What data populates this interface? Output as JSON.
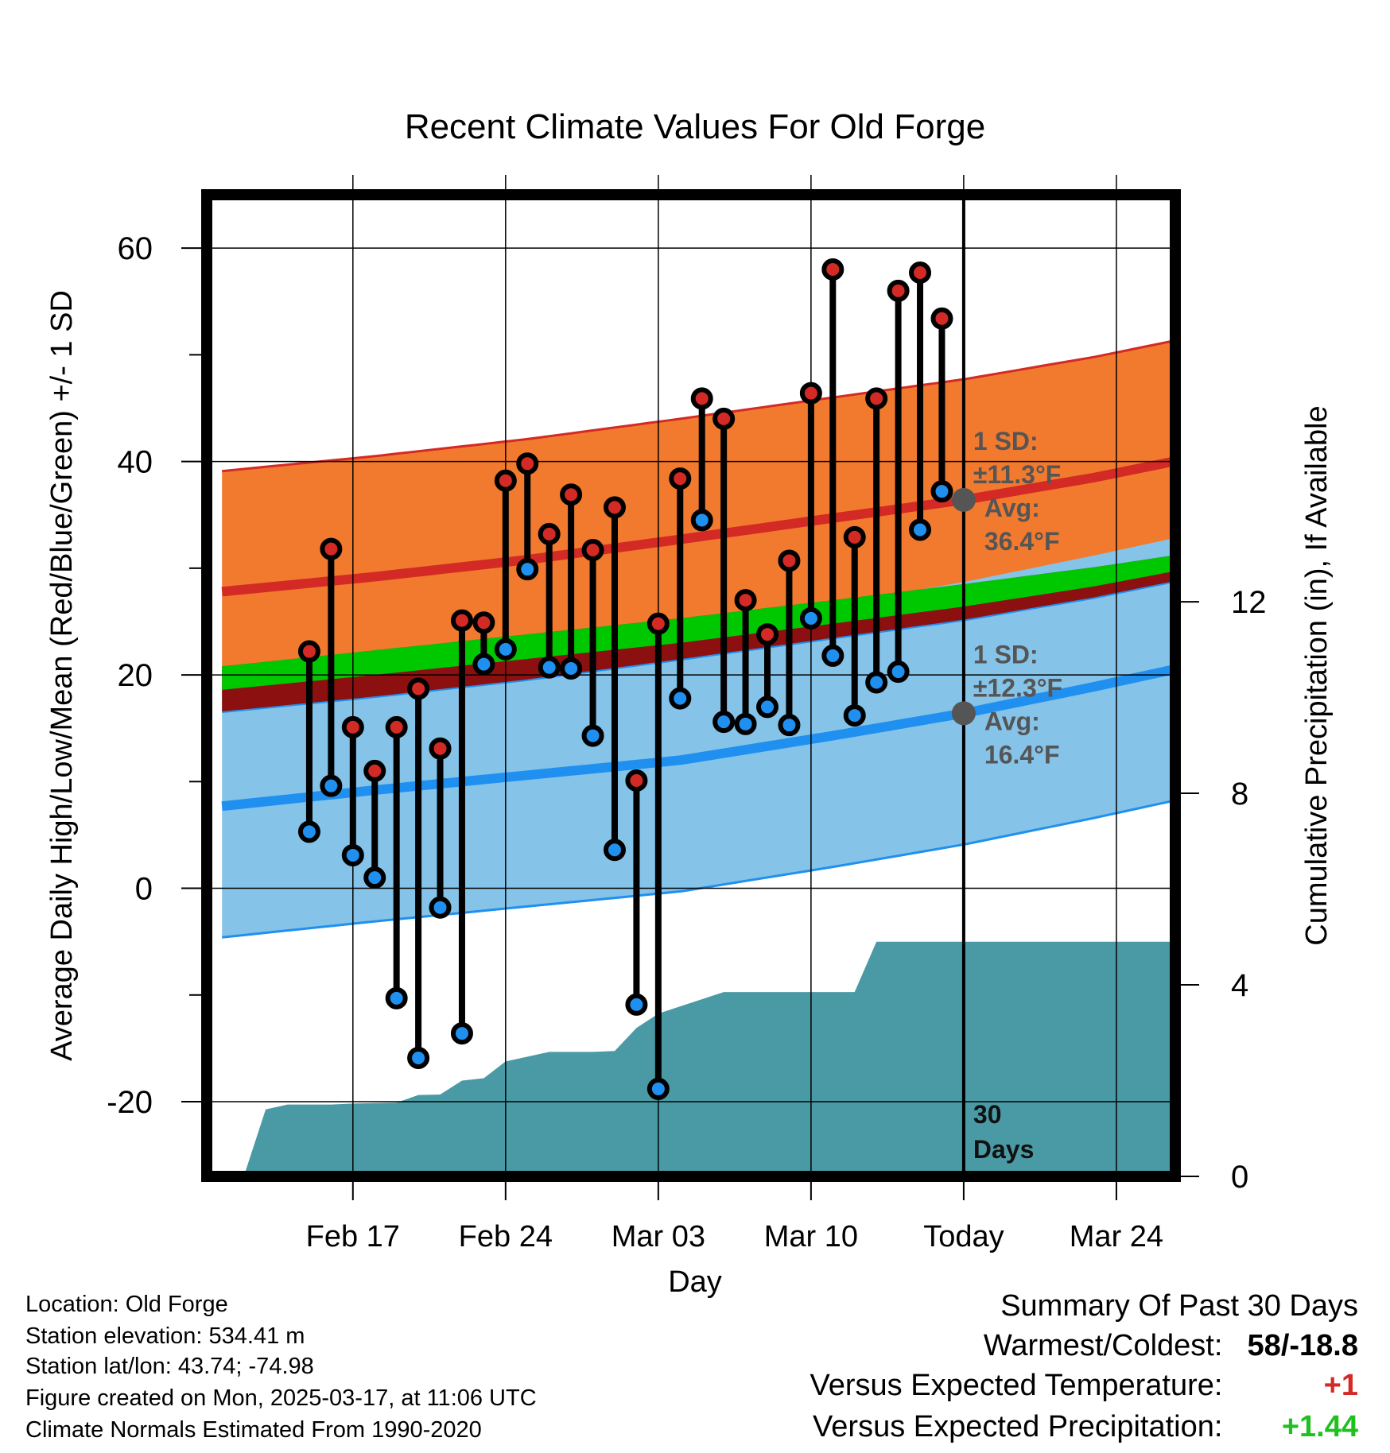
{
  "chart_data": {
    "type": "line",
    "title": "Recent Climate Values For Old Forge",
    "xlabel": "Day",
    "ylabel": "Average Daily High/Low/Mean (Red/Blue/Green) +/- 1 SD",
    "y2label": "Cumulative Precipitation (in), If Available",
    "xlim_days": [
      -34.7,
      9.7
    ],
    "ylim": [
      -27,
      65
    ],
    "y2lim": [
      0,
      20.5
    ],
    "x_ticks": [
      {
        "label": "Feb 17",
        "day": -28
      },
      {
        "label": "Feb 24",
        "day": -21
      },
      {
        "label": "Mar 03",
        "day": -14
      },
      {
        "label": "Mar 10",
        "day": -7
      },
      {
        "label": "Today",
        "day": 0
      },
      {
        "label": "Mar 24",
        "day": 7
      }
    ],
    "y_ticks": [
      60,
      40,
      20,
      0,
      -20
    ],
    "y2_ticks": [
      12,
      8,
      4,
      0
    ],
    "colors": {
      "high_band": "#f27a2e",
      "high_mean": "#d42a25",
      "low_band": "#85c3e8",
      "low_mean": "#2090f0",
      "mean_band": "#00c800",
      "overlap": "#8c1010",
      "precip": "#4a9aa5",
      "marker_high": "#d42a25",
      "marker_low": "#2090f0",
      "today_dot": "#555555"
    },
    "normals": {
      "days": [
        -34,
        -27,
        -20,
        -13,
        -6,
        0,
        6,
        9.6
      ],
      "high_mean": [
        27.8,
        29.2,
        30.8,
        32.7,
        34.7,
        36.4,
        38.5,
        40.0
      ],
      "high_sd": 11.3,
      "low_mean": [
        7.7,
        9.2,
        10.6,
        12.0,
        14.3,
        16.4,
        18.9,
        20.5
      ],
      "low_sd": 12.3,
      "mean_lower": [
        18.6,
        20.0,
        21.5,
        23.0,
        24.8,
        26.4,
        28.3,
        29.7
      ],
      "mean_upper": [
        20.8,
        22.3,
        23.8,
        25.3,
        27.0,
        28.5,
        30.1,
        31.2
      ]
    },
    "series": [
      {
        "name": "Daily High",
        "values": [
          22.2,
          31.8,
          15.1,
          11.0,
          15.1,
          18.7,
          13.1,
          25.1,
          24.9,
          38.2,
          39.8,
          33.2,
          36.9,
          31.7,
          35.7,
          10.1,
          24.8,
          38.4,
          45.9,
          44.0,
          27.0,
          23.8,
          30.7,
          46.4,
          58.0,
          32.9,
          45.9,
          56.0,
          57.7,
          53.4
        ]
      },
      {
        "name": "Daily Low",
        "values": [
          5.3,
          9.6,
          3.1,
          1.0,
          -10.3,
          -15.9,
          -1.8,
          -13.6,
          21.0,
          22.4,
          29.9,
          20.7,
          20.6,
          14.3,
          3.6,
          -10.9,
          -18.8,
          17.8,
          34.5,
          15.6,
          15.4,
          17.0,
          15.3,
          25.3,
          21.8,
          16.2,
          19.3,
          20.3,
          33.6,
          37.2
        ]
      },
      {
        "name": "Cumulative Precipitation",
        "values": [
          0.0,
          1.4,
          1.5,
          1.5,
          1.5,
          1.52,
          1.53,
          1.54,
          1.7,
          1.71,
          2.0,
          2.05,
          2.4,
          2.5,
          2.6,
          2.6,
          2.6,
          2.62,
          3.1,
          3.4,
          3.55,
          3.7,
          3.85,
          3.85,
          3.85,
          3.85,
          3.85,
          3.85,
          3.85,
          4.9,
          4.9,
          4.9
        ]
      }
    ],
    "annotations": {
      "high_sd_label": "1 SD:",
      "high_sd_value": "±11.3°F",
      "high_avg_label": "Avg:",
      "high_avg_value": "36.4°F",
      "low_sd_label": "1 SD:",
      "low_sd_value": "±12.3°F",
      "low_avg_label": "Avg:",
      "low_avg_value": "16.4°F",
      "period_number": "30",
      "period_unit": "Days"
    }
  },
  "info": {
    "location": "Location: Old Forge",
    "elevation": "Station elevation: 534.41 m",
    "latlon": "Station lat/lon: 43.74; -74.98",
    "created": "Figure created on Mon, 2025-03-17, at 11:06 UTC",
    "normals": "Climate Normals Estimated From 1990-2020"
  },
  "summary": {
    "title": "Summary Of Past 30 Days",
    "warm_cold_label": "Warmest/Coldest:",
    "warm_cold_value": "58/-18.8",
    "temp_label": "Versus Expected Temperature:",
    "temp_value": "+1",
    "temp_color": "#d42a25",
    "precip_label": "Versus Expected Precipitation:",
    "precip_value": "+1.44",
    "precip_color": "#20c020"
  }
}
